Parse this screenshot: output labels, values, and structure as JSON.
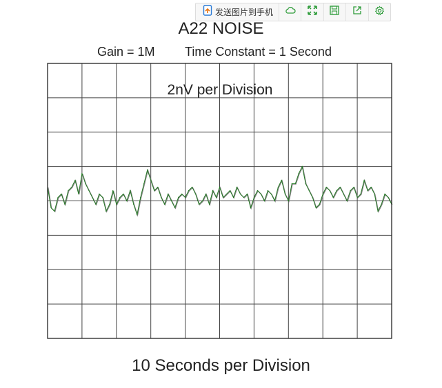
{
  "toolbar": {
    "send_label": "发送图片到手机",
    "icons": [
      "send-to-phone-icon",
      "cloud-icon",
      "fullscreen-icon",
      "save-icon",
      "share-icon",
      "settings-icon"
    ],
    "accent": "#2e9c3a"
  },
  "chart_data": {
    "type": "line",
    "title": "A22 NOISE",
    "subtitle_left": "Gain = 1M",
    "subtitle_right": "Time Constant = 1 Second",
    "ylabel": "2nV per Division",
    "xlabel": "10 Seconds per Division",
    "x_divisions": 10,
    "y_divisions": 8,
    "xlim": [
      0,
      100
    ],
    "ylim": [
      -8,
      8
    ],
    "grid": true,
    "colors": {
      "trace": "#1e7a1e",
      "trace_alt": "#808080",
      "grid": "#444444",
      "frame": "#222222"
    },
    "series": [
      {
        "x": [
          0,
          1,
          2,
          3,
          4,
          5,
          6,
          7,
          8,
          9,
          10,
          11,
          12,
          13,
          14,
          15,
          16,
          17,
          18,
          19,
          20,
          21,
          22,
          23,
          24,
          25,
          26,
          27,
          28,
          29,
          30,
          31,
          32,
          33,
          34,
          35,
          36,
          37,
          38,
          39,
          40,
          41,
          42,
          43,
          44,
          45,
          46,
          47,
          48,
          49,
          50,
          51,
          52,
          53,
          54,
          55,
          56,
          57,
          58,
          59,
          60,
          61,
          62,
          63,
          64,
          65,
          66,
          67,
          68,
          69,
          70,
          71,
          72,
          73,
          74,
          75,
          76,
          77,
          78,
          79,
          80,
          81,
          82,
          83,
          84,
          85,
          86,
          87,
          88,
          89,
          90,
          91,
          92,
          93,
          94,
          95,
          96,
          97,
          98,
          99,
          100
        ],
        "values": [
          0.8,
          -0.4,
          -0.6,
          0.2,
          0.4,
          -0.2,
          0.6,
          0.8,
          1.2,
          0.4,
          1.6,
          1.0,
          0.6,
          0.2,
          -0.2,
          0.4,
          0.2,
          -0.6,
          -0.2,
          0.6,
          -0.2,
          0.2,
          0.4,
          0.0,
          0.6,
          -0.2,
          -0.8,
          0.2,
          1.0,
          1.8,
          1.2,
          0.6,
          0.8,
          0.2,
          -0.2,
          0.4,
          0.0,
          -0.4,
          0.2,
          0.4,
          0.2,
          0.6,
          0.8,
          0.4,
          -0.2,
          0.0,
          0.4,
          -0.2,
          0.6,
          0.2,
          0.8,
          0.2,
          0.4,
          0.6,
          0.2,
          0.8,
          0.4,
          0.2,
          0.4,
          -0.4,
          0.2,
          0.6,
          0.4,
          0.0,
          0.6,
          0.4,
          0.0,
          0.8,
          1.2,
          0.4,
          0.0,
          1.0,
          1.0,
          1.6,
          2.0,
          1.0,
          0.6,
          0.2,
          -0.4,
          -0.2,
          0.4,
          0.8,
          0.6,
          0.2,
          0.6,
          0.8,
          0.4,
          0.0,
          0.6,
          0.8,
          0.2,
          0.4,
          1.2,
          0.6,
          0.8,
          0.4,
          -0.6,
          -0.2,
          0.4,
          0.2,
          -0.2
        ]
      }
    ]
  }
}
